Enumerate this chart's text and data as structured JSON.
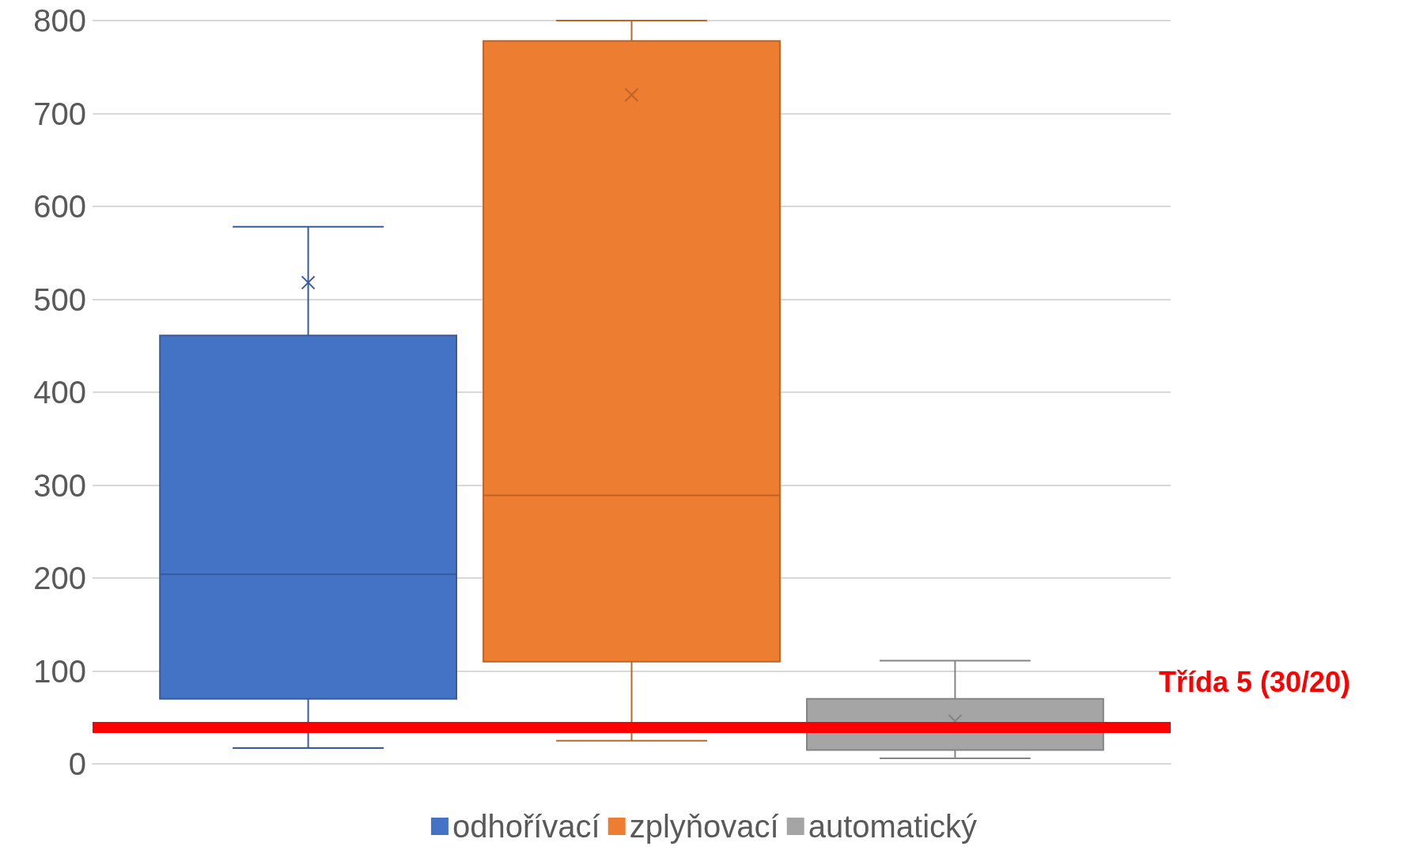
{
  "chart_data": {
    "type": "box",
    "categories": [
      null
    ],
    "series": [
      {
        "name": "odhořívací",
        "color": "#4472c4",
        "boxes": [
          {
            "low": 17,
            "q1": 70,
            "median": 204,
            "q3": 461,
            "high": 578,
            "mean": 518
          }
        ]
      },
      {
        "name": "zplyňovací",
        "color": "#ed7d31",
        "boxes": [
          {
            "low": 25,
            "q1": 110,
            "median": 289,
            "q3": 778,
            "high": 800,
            "mean": 720
          }
        ]
      },
      {
        "name": "automatický",
        "color": "#a5a5a5",
        "boxes": [
          {
            "low": 6,
            "q1": 15,
            "median": 35,
            "q3": 70,
            "high": 111,
            "mean": 46
          }
        ]
      }
    ],
    "ylim": [
      0,
      800
    ],
    "yticks": [
      0,
      100,
      200,
      300,
      400,
      500,
      600,
      700,
      800
    ],
    "grid": "y",
    "legend": "bottom",
    "marker": "cross",
    "ref_lines": [
      {
        "axis": "y",
        "value": 39,
        "label": "Třída 5 (30/20)",
        "color": "#ff0000"
      }
    ]
  }
}
